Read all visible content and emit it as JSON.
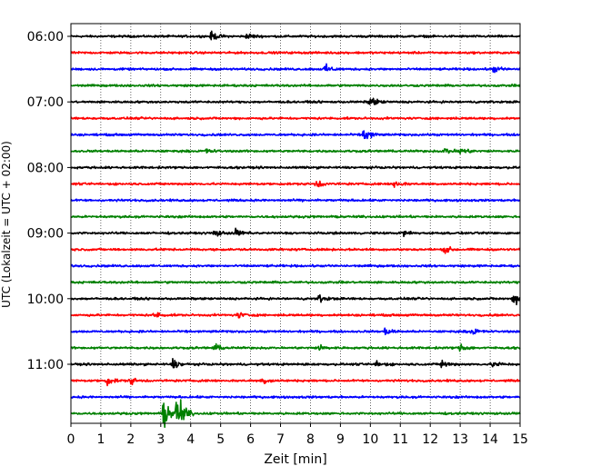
{
  "chart_data": {
    "type": "line",
    "subtype": "seismogram-helicorder",
    "xlabel": "Zeit  [min]",
    "ylabel": "UTC (Lokalzeit = UTC + 02:00)",
    "xlim": [
      0,
      15
    ],
    "xticks": [
      0,
      1,
      2,
      3,
      4,
      5,
      6,
      7,
      8,
      9,
      10,
      11,
      12,
      13,
      14,
      15
    ],
    "xtick_labels": [
      "0",
      "1",
      "2",
      "3",
      "4",
      "5",
      "6",
      "7",
      "8",
      "9",
      "10",
      "11",
      "12",
      "13",
      "14",
      "15"
    ],
    "yticks": [
      "06:00",
      "07:00",
      "08:00",
      "09:00",
      "10:00",
      "11:00"
    ],
    "trace_interval_min": 15,
    "trace_count": 24,
    "trace_colors": [
      "#000000",
      "#ff0000",
      "#0000ff",
      "#008000"
    ],
    "grid": "vertical dotted",
    "legend": "none",
    "events": [
      {
        "trace": 0,
        "minute": 4.7,
        "amp": 0.35
      },
      {
        "trace": 0,
        "minute": 5.9,
        "amp": 0.25
      },
      {
        "trace": 2,
        "minute": 8.5,
        "amp": 0.35
      },
      {
        "trace": 2,
        "minute": 14.1,
        "amp": 0.3
      },
      {
        "trace": 4,
        "minute": 10.0,
        "amp": 0.45
      },
      {
        "trace": 6,
        "minute": 9.8,
        "amp": 0.65
      },
      {
        "trace": 7,
        "minute": 4.5,
        "amp": 0.2
      },
      {
        "trace": 7,
        "minute": 12.5,
        "amp": 0.3
      },
      {
        "trace": 7,
        "minute": 13.0,
        "amp": 0.35
      },
      {
        "trace": 9,
        "minute": 8.2,
        "amp": 0.35
      },
      {
        "trace": 9,
        "minute": 10.8,
        "amp": 0.35
      },
      {
        "trace": 12,
        "minute": 4.8,
        "amp": 0.3
      },
      {
        "trace": 12,
        "minute": 5.5,
        "amp": 0.3
      },
      {
        "trace": 12,
        "minute": 11.1,
        "amp": 0.25
      },
      {
        "trace": 13,
        "minute": 12.5,
        "amp": 0.3
      },
      {
        "trace": 16,
        "minute": 8.3,
        "amp": 0.3
      },
      {
        "trace": 16,
        "minute": 14.8,
        "amp": 0.55
      },
      {
        "trace": 17,
        "minute": 2.8,
        "amp": 0.25
      },
      {
        "trace": 17,
        "minute": 5.6,
        "amp": 0.25
      },
      {
        "trace": 18,
        "minute": 10.5,
        "amp": 0.3
      },
      {
        "trace": 18,
        "minute": 13.4,
        "amp": 0.3
      },
      {
        "trace": 19,
        "minute": 4.8,
        "amp": 0.3
      },
      {
        "trace": 19,
        "minute": 8.3,
        "amp": 0.3
      },
      {
        "trace": 19,
        "minute": 13.0,
        "amp": 0.3
      },
      {
        "trace": 20,
        "minute": 3.4,
        "amp": 0.45
      },
      {
        "trace": 20,
        "minute": 10.2,
        "amp": 0.3
      },
      {
        "trace": 20,
        "minute": 12.4,
        "amp": 0.35
      },
      {
        "trace": 20,
        "minute": 14.1,
        "amp": 0.3
      },
      {
        "trace": 21,
        "minute": 1.2,
        "amp": 0.35
      },
      {
        "trace": 21,
        "minute": 2.0,
        "amp": 0.3
      },
      {
        "trace": 21,
        "minute": 6.4,
        "amp": 0.3
      },
      {
        "trace": 23,
        "minute": 3.1,
        "amp": 1.2
      },
      {
        "trace": 23,
        "minute": 3.55,
        "amp": 1.8
      }
    ]
  }
}
